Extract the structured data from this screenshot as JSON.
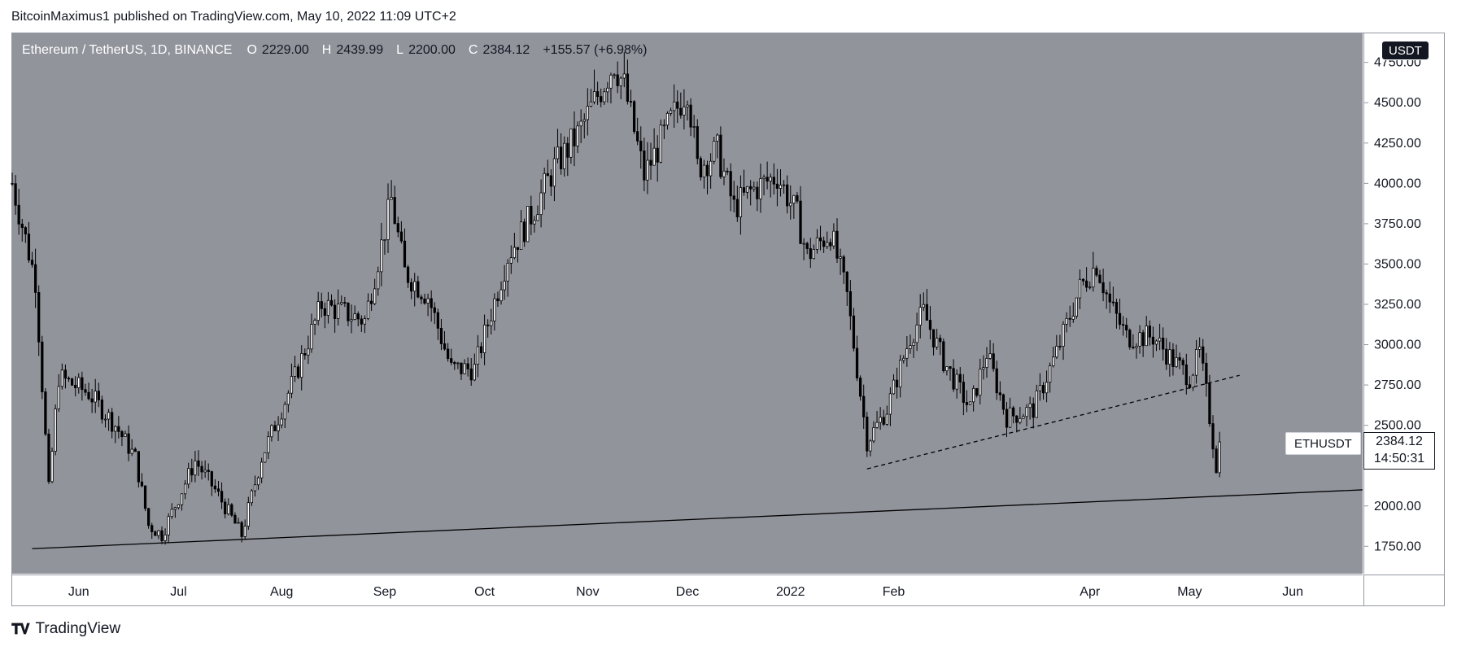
{
  "publisher_line": "BitcoinMaximus1 published on TradingView.com, May 10, 2022 11:09 UTC+2",
  "header": {
    "symbol": "Ethereum / TetherUS, 1D, BINANCE",
    "o_key": "O",
    "o_val": "2229.00",
    "h_key": "H",
    "h_val": "2439.99",
    "l_key": "L",
    "l_val": "2200.00",
    "c_key": "C",
    "c_val": "2384.12",
    "change": "+155.57 (+6.98%)"
  },
  "currency_button": "USDT",
  "ticker_label": "ETHUSDT",
  "last_price": "2384.12",
  "countdown": "14:50:31",
  "footer_brand": "TradingView",
  "colors": {
    "plot_bg": "#92949c",
    "candle": "#000000",
    "axis_text": "#131722",
    "frame": "#9598a1"
  },
  "chart_data": {
    "type": "candlestick",
    "title": "Ethereum / TetherUS, 1D, BINANCE",
    "y_ticks": [
      1750,
      2000,
      2250,
      2500,
      2750,
      3000,
      3250,
      3500,
      3750,
      4000,
      4250,
      4500,
      4750
    ],
    "y_tick_labels": [
      "1750.00",
      "2000.00",
      "2500.00",
      "2750.00",
      "3000.00",
      "3250.00",
      "3500.00",
      "3750.00",
      "4000.00",
      "4250.00",
      "4500.00",
      "4750.00"
    ],
    "ylim": [
      1580,
      4930
    ],
    "x_range": [
      "2021-05-12",
      "2022-06-22"
    ],
    "x_ticks": [
      {
        "label": "Jun",
        "date": "2021-06-01"
      },
      {
        "label": "Jul",
        "date": "2021-07-01"
      },
      {
        "label": "Aug",
        "date": "2021-08-01"
      },
      {
        "label": "Sep",
        "date": "2021-09-01"
      },
      {
        "label": "Oct",
        "date": "2021-10-01"
      },
      {
        "label": "Nov",
        "date": "2021-11-01"
      },
      {
        "label": "Dec",
        "date": "2021-12-01"
      },
      {
        "label": "2022",
        "date": "2022-01-01"
      },
      {
        "label": "Feb",
        "date": "2022-02-01"
      },
      {
        "label": "Apr",
        "date": "2022-04-01"
      },
      {
        "label": "May",
        "date": "2022-05-01"
      },
      {
        "label": "Jun",
        "date": "2022-06-01"
      }
    ],
    "price_path": [
      {
        "date": "2021-05-12",
        "price": 4000
      },
      {
        "date": "2021-05-19",
        "price": 3400
      },
      {
        "date": "2021-05-23",
        "price": 2100
      },
      {
        "date": "2021-05-26",
        "price": 2800
      },
      {
        "date": "2021-06-04",
        "price": 2700
      },
      {
        "date": "2021-06-12",
        "price": 2500
      },
      {
        "date": "2021-06-18",
        "price": 2300
      },
      {
        "date": "2021-06-22",
        "price": 1880
      },
      {
        "date": "2021-06-26",
        "price": 1820
      },
      {
        "date": "2021-07-06",
        "price": 2280
      },
      {
        "date": "2021-07-12",
        "price": 2100
      },
      {
        "date": "2021-07-20",
        "price": 1820
      },
      {
        "date": "2021-07-26",
        "price": 2300
      },
      {
        "date": "2021-08-05",
        "price": 2800
      },
      {
        "date": "2021-08-13",
        "price": 3250
      },
      {
        "date": "2021-08-26",
        "price": 3150
      },
      {
        "date": "2021-09-03",
        "price": 3900
      },
      {
        "date": "2021-09-07",
        "price": 3450
      },
      {
        "date": "2021-09-14",
        "price": 3300
      },
      {
        "date": "2021-09-21",
        "price": 2850
      },
      {
        "date": "2021-09-28",
        "price": 2850
      },
      {
        "date": "2021-10-08",
        "price": 3550
      },
      {
        "date": "2021-10-15",
        "price": 3800
      },
      {
        "date": "2021-10-22",
        "price": 4100
      },
      {
        "date": "2021-10-29",
        "price": 4300
      },
      {
        "date": "2021-11-09",
        "price": 4750
      },
      {
        "date": "2021-11-12",
        "price": 4600
      },
      {
        "date": "2021-11-18",
        "price": 4050
      },
      {
        "date": "2021-11-24",
        "price": 4300
      },
      {
        "date": "2021-12-01",
        "price": 4600
      },
      {
        "date": "2021-12-04",
        "price": 4100
      },
      {
        "date": "2021-12-10",
        "price": 4200
      },
      {
        "date": "2021-12-15",
        "price": 3850
      },
      {
        "date": "2021-12-20",
        "price": 3950
      },
      {
        "date": "2021-12-28",
        "price": 4050
      },
      {
        "date": "2022-01-03",
        "price": 3800
      },
      {
        "date": "2022-01-06",
        "price": 3550
      },
      {
        "date": "2022-01-13",
        "price": 3700
      },
      {
        "date": "2022-01-18",
        "price": 3300
      },
      {
        "date": "2022-01-22",
        "price": 2700
      },
      {
        "date": "2022-01-24",
        "price": 2400
      },
      {
        "date": "2022-01-30",
        "price": 2600
      },
      {
        "date": "2022-02-06",
        "price": 3050
      },
      {
        "date": "2022-02-10",
        "price": 3200
      },
      {
        "date": "2022-02-16",
        "price": 2900
      },
      {
        "date": "2022-02-24",
        "price": 2600
      },
      {
        "date": "2022-03-01",
        "price": 2950
      },
      {
        "date": "2022-03-07",
        "price": 2550
      },
      {
        "date": "2022-03-15",
        "price": 2600
      },
      {
        "date": "2022-03-22",
        "price": 2950
      },
      {
        "date": "2022-03-29",
        "price": 3350
      },
      {
        "date": "2022-04-03",
        "price": 3500
      },
      {
        "date": "2022-04-07",
        "price": 3250
      },
      {
        "date": "2022-04-12",
        "price": 3050
      },
      {
        "date": "2022-04-20",
        "price": 3050
      },
      {
        "date": "2022-04-26",
        "price": 2900
      },
      {
        "date": "2022-05-01",
        "price": 2800
      },
      {
        "date": "2022-05-04",
        "price": 2950
      },
      {
        "date": "2022-05-06",
        "price": 2700
      },
      {
        "date": "2022-05-09",
        "price": 2250
      },
      {
        "date": "2022-05-10",
        "price": 2384
      }
    ],
    "trendlines": [
      {
        "style": "solid",
        "from": {
          "date": "2021-05-18",
          "price": 1735
        },
        "to": {
          "date": "2022-06-22",
          "price": 2100
        }
      },
      {
        "style": "dashed",
        "from": {
          "date": "2022-01-24",
          "price": 2230
        },
        "to": {
          "date": "2022-05-16",
          "price": 2810
        }
      }
    ],
    "last_price": 2384.12,
    "grid": false,
    "legend": "none"
  }
}
